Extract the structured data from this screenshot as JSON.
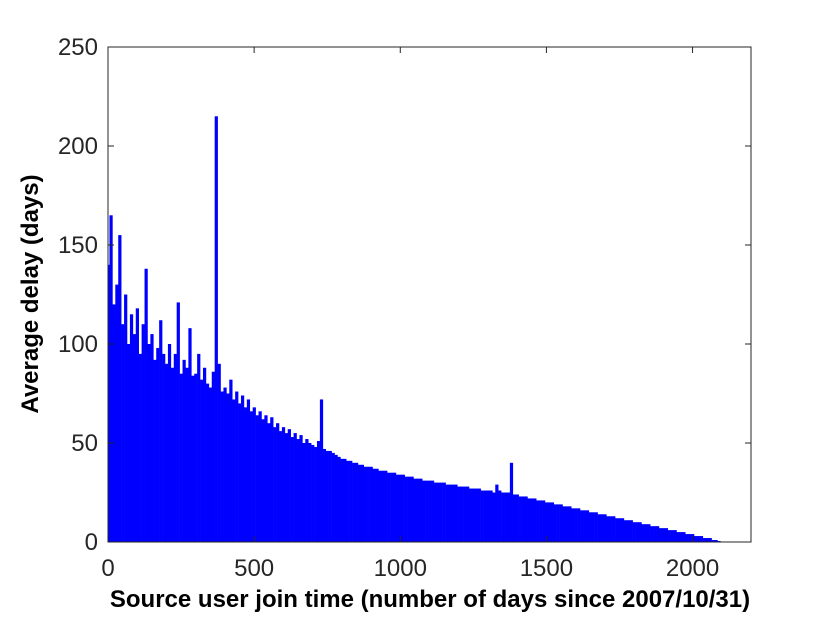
{
  "chart_data": {
    "type": "bar",
    "xlabel": "Source user join time (number of days since 2007/10/31)",
    "ylabel": "Average delay (days)",
    "color": "#0000ff",
    "xlim": [
      0,
      2200
    ],
    "xticks": [
      0,
      500,
      1000,
      1500,
      2000
    ],
    "ylim": [
      0,
      250
    ],
    "yticks": [
      0,
      50,
      100,
      150,
      200,
      250
    ],
    "x": [
      0,
      10,
      20,
      30,
      40,
      50,
      60,
      70,
      80,
      90,
      100,
      110,
      120,
      130,
      140,
      150,
      160,
      170,
      180,
      190,
      200,
      210,
      220,
      230,
      240,
      250,
      260,
      270,
      280,
      290,
      300,
      310,
      320,
      330,
      340,
      350,
      360,
      370,
      380,
      390,
      400,
      410,
      420,
      430,
      440,
      450,
      460,
      470,
      480,
      490,
      500,
      510,
      520,
      530,
      540,
      550,
      560,
      570,
      580,
      590,
      600,
      610,
      620,
      630,
      640,
      650,
      660,
      670,
      680,
      690,
      700,
      710,
      720,
      730,
      740,
      750,
      760,
      770,
      780,
      790,
      800,
      810,
      820,
      830,
      840,
      850,
      860,
      870,
      880,
      890,
      900,
      910,
      920,
      930,
      940,
      950,
      960,
      970,
      980,
      990,
      1000,
      1010,
      1020,
      1030,
      1040,
      1050,
      1060,
      1070,
      1080,
      1090,
      1100,
      1110,
      1120,
      1130,
      1140,
      1150,
      1160,
      1170,
      1180,
      1190,
      1200,
      1210,
      1220,
      1230,
      1240,
      1250,
      1260,
      1270,
      1280,
      1290,
      1300,
      1310,
      1320,
      1330,
      1340,
      1350,
      1360,
      1370,
      1380,
      1390,
      1400,
      1410,
      1420,
      1430,
      1440,
      1450,
      1460,
      1470,
      1480,
      1490,
      1500,
      1510,
      1520,
      1530,
      1540,
      1550,
      1560,
      1570,
      1580,
      1590,
      1600,
      1610,
      1620,
      1630,
      1640,
      1650,
      1660,
      1670,
      1680,
      1690,
      1700,
      1710,
      1720,
      1730,
      1740,
      1750,
      1760,
      1770,
      1780,
      1790,
      1800,
      1810,
      1820,
      1830,
      1840,
      1850,
      1860,
      1870,
      1880,
      1890,
      1900,
      1910,
      1920,
      1930,
      1940,
      1950,
      1960,
      1970,
      1980,
      1990,
      2000,
      2010,
      2020,
      2030,
      2040,
      2050,
      2060,
      2070,
      2080,
      2090
    ],
    "values": [
      140,
      165,
      120,
      130,
      155,
      110,
      125,
      100,
      115,
      105,
      118,
      95,
      110,
      138,
      100,
      105,
      92,
      98,
      112,
      95,
      90,
      100,
      88,
      95,
      121,
      85,
      92,
      88,
      108,
      84,
      85,
      95,
      82,
      88,
      80,
      78,
      86,
      215,
      90,
      76,
      78,
      75,
      82,
      72,
      76,
      70,
      74,
      68,
      72,
      66,
      68,
      64,
      66,
      62,
      64,
      60,
      63,
      58,
      60,
      56,
      58,
      55,
      57,
      53,
      55,
      52,
      54,
      50,
      52,
      50,
      49,
      48,
      51,
      72,
      47,
      46,
      46,
      45,
      44,
      43,
      42,
      42,
      41,
      41,
      40,
      40,
      39,
      39,
      38,
      38,
      38,
      37,
      37,
      36,
      36,
      36,
      35,
      35,
      35,
      34,
      34,
      34,
      33,
      33,
      33,
      32,
      32,
      32,
      31,
      31,
      31,
      31,
      30,
      30,
      30,
      30,
      29,
      29,
      29,
      29,
      28,
      28,
      28,
      28,
      27,
      27,
      27,
      27,
      26,
      26,
      26,
      26,
      25,
      29,
      26,
      25,
      25,
      25,
      40,
      24,
      24,
      23,
      23,
      23,
      22,
      22,
      22,
      21,
      21,
      21,
      20,
      20,
      20,
      19,
      19,
      19,
      18,
      18,
      18,
      17,
      17,
      17,
      16,
      16,
      16,
      15,
      15,
      15,
      14,
      14,
      14,
      13,
      13,
      13,
      12,
      12,
      12,
      11,
      11,
      11,
      10,
      10,
      10,
      9,
      9,
      9,
      8,
      8,
      8,
      7,
      7,
      7,
      6,
      6,
      6,
      5,
      5,
      5,
      4,
      4,
      4,
      3,
      3,
      3,
      2,
      2,
      2,
      1,
      1,
      0.5
    ]
  }
}
